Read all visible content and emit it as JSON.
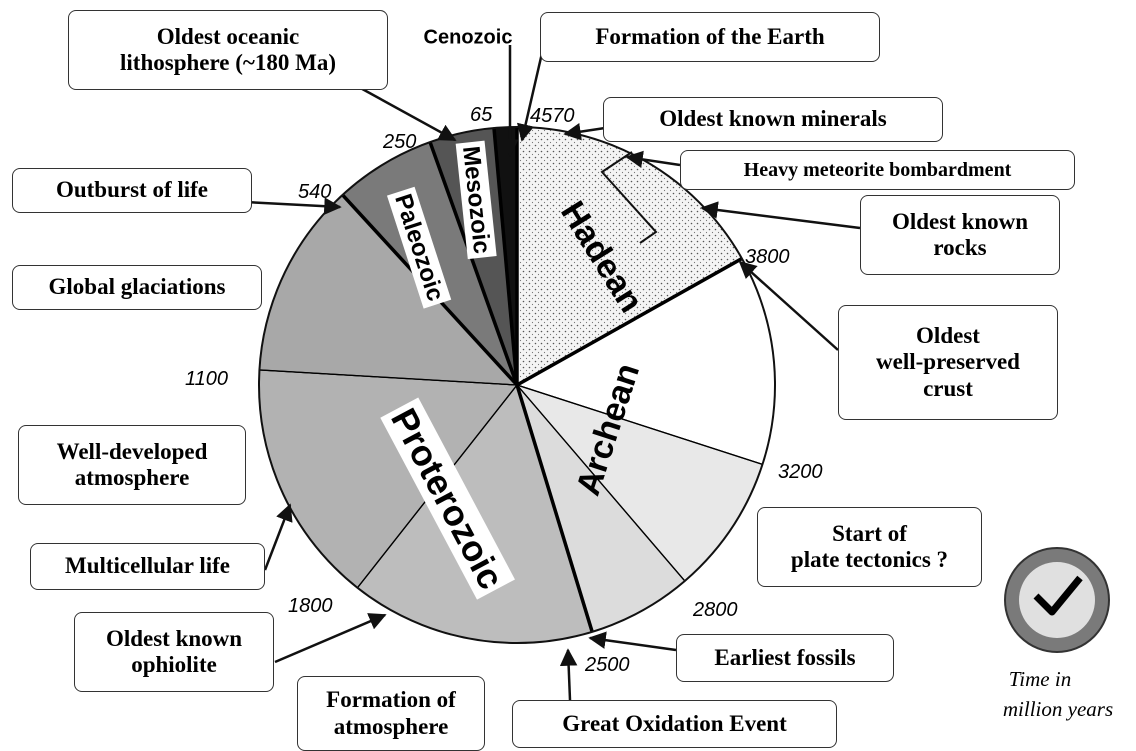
{
  "title_note": "Time in million years",
  "time_lines": [
    "Time in",
    "million years"
  ],
  "ages": [
    4570,
    3800,
    3200,
    2800,
    2500,
    1800,
    1100,
    540,
    250,
    65
  ],
  "eras": [
    "Hadean",
    "Archean",
    "Proterozoic",
    "Paleozoic",
    "Mesozoic",
    "Cenozoic"
  ],
  "events": [
    {
      "lines": [
        "Oldest oceanic",
        "lithosphere (~180 Ma)"
      ]
    },
    {
      "lines": [
        "Formation of the Earth"
      ]
    },
    {
      "lines": [
        "Oldest known minerals"
      ]
    },
    {
      "lines": [
        "Heavy meteorite bombardment"
      ]
    },
    {
      "lines": [
        "Oldest known",
        "rocks"
      ]
    },
    {
      "lines": [
        "Oldest",
        "well-preserved",
        "crust"
      ]
    },
    {
      "lines": [
        "Outburst of life"
      ]
    },
    {
      "lines": [
        "Global glaciations"
      ]
    },
    {
      "lines": [
        "Well-developed",
        "atmosphere"
      ]
    },
    {
      "lines": [
        "Multicellular life"
      ]
    },
    {
      "lines": [
        "Oldest known",
        "ophiolite"
      ]
    },
    {
      "lines": [
        "Formation of",
        "atmosphere"
      ]
    },
    {
      "lines": [
        "Great Oxidation Event"
      ]
    },
    {
      "lines": [
        "Earliest fossils"
      ]
    },
    {
      "lines": [
        "Start of",
        "plate tectonics ?"
      ]
    }
  ]
}
